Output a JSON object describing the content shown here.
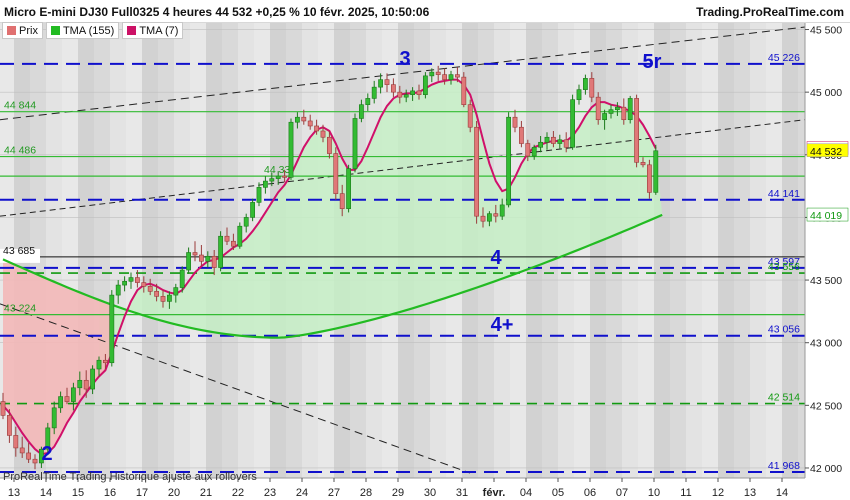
{
  "header": {
    "title": "Micro E-mini DJ30 Full0325 4 heures 44 532 +0,25 % 10 févr. 2025, 10:50:06",
    "brand": "Trading.ProRealTime.com"
  },
  "legend": [
    {
      "label": "Prix",
      "color": "#e07070"
    },
    {
      "label": "TMA (155)",
      "color": "#22bb22"
    },
    {
      "label": "TMA (7)",
      "color": "#cc1166"
    }
  ],
  "footer": "ProRealTime Trading Historique ajusté aux rollovers",
  "colors": {
    "up": "#33bb33",
    "down": "#e07878",
    "tma155": "#22bb22",
    "tma7": "#d0106a",
    "blue_dash": "#1010cc",
    "green_dash": "#119911",
    "green_solid": "#33bb33",
    "green_fill": "#c5efc5",
    "red_fill": "#f3b8b8",
    "price_bg": "#ffff00"
  },
  "chart_data": {
    "type": "candlestick",
    "title": "Micro E-mini DJ30 Full0325 4 heures",
    "ylim": [
      41920,
      45560
    ],
    "y_ticks": [
      42000,
      42500,
      43000,
      43500,
      44000,
      44500,
      45000,
      45500
    ],
    "y_tick_labels": [
      "42 000",
      "42 500",
      "43 000",
      "43 500",
      "44 000",
      "44 500",
      "45 000",
      "45 500"
    ],
    "x_tick_labels": [
      "13",
      "14",
      "15",
      "16",
      "17",
      "20",
      "21",
      "22",
      "23",
      "24",
      "27",
      "28",
      "29",
      "30",
      "31",
      "févr.",
      "04",
      "05",
      "06",
      "07",
      "10",
      "11",
      "12",
      "13",
      "14"
    ],
    "levels": [
      {
        "value": 45226,
        "label": "45 226",
        "style": "blue_dash"
      },
      {
        "value": 44844,
        "label": "44 844",
        "style": "green_solid"
      },
      {
        "value": 44486,
        "label": "44 486",
        "style": "green_solid"
      },
      {
        "value": 44330,
        "label": "44 33",
        "style": "green_solid"
      },
      {
        "value": 44141,
        "label": "44 141",
        "style": "blue_dash"
      },
      {
        "value": 43685,
        "label": "43 685",
        "style": "black_solid"
      },
      {
        "value": 43597,
        "label": "43 597",
        "style": "blue_dash"
      },
      {
        "value": 43556,
        "label": "43 556",
        "style": "green_dash"
      },
      {
        "value": 43224,
        "label": "43 224",
        "style": "green_solid"
      },
      {
        "value": 43056,
        "label": "43 056",
        "style": "blue_dash"
      },
      {
        "value": 42514,
        "label": "42 514",
        "style": "green_dash"
      },
      {
        "value": 41968,
        "label": "41 968",
        "style": "blue_dash"
      }
    ],
    "price_labels": [
      {
        "value": 44550,
        "label": "44 550"
      },
      {
        "value": 44532,
        "label": "44 532"
      },
      {
        "value": 44019,
        "label": "44 019"
      }
    ],
    "wave_labels": [
      "2",
      "3",
      "4",
      "4+",
      "5r"
    ],
    "ohlc": [
      [
        42530,
        42600,
        42390,
        42420
      ],
      [
        42420,
        42470,
        42200,
        42260
      ],
      [
        42260,
        42330,
        42090,
        42160
      ],
      [
        42160,
        42250,
        42080,
        42120
      ],
      [
        42120,
        42200,
        42040,
        42070
      ],
      [
        42070,
        42110,
        41990,
        42040
      ],
      [
        42040,
        42170,
        42000,
        42150
      ],
      [
        42150,
        42360,
        42120,
        42320
      ],
      [
        42320,
        42530,
        42270,
        42480
      ],
      [
        42480,
        42610,
        42440,
        42570
      ],
      [
        42570,
        42640,
        42510,
        42530
      ],
      [
        42530,
        42680,
        42460,
        42640
      ],
      [
        42640,
        42770,
        42580,
        42700
      ],
      [
        42700,
        42780,
        42560,
        42630
      ],
      [
        42630,
        42820,
        42590,
        42790
      ],
      [
        42790,
        42890,
        42730,
        42860
      ],
      [
        42860,
        42910,
        42790,
        42840
      ],
      [
        42840,
        43420,
        42810,
        43380
      ],
      [
        43380,
        43500,
        43310,
        43460
      ],
      [
        43460,
        43530,
        43410,
        43490
      ],
      [
        43490,
        43560,
        43430,
        43520
      ],
      [
        43520,
        43580,
        43440,
        43480
      ],
      [
        43480,
        43530,
        43400,
        43450
      ],
      [
        43450,
        43510,
        43380,
        43410
      ],
      [
        43410,
        43470,
        43330,
        43370
      ],
      [
        43370,
        43420,
        43280,
        43330
      ],
      [
        43330,
        43410,
        43270,
        43380
      ],
      [
        43380,
        43470,
        43320,
        43440
      ],
      [
        43440,
        43610,
        43400,
        43580
      ],
      [
        43580,
        43760,
        43550,
        43720
      ],
      [
        43720,
        43810,
        43650,
        43700
      ],
      [
        43700,
        43780,
        43610,
        43650
      ],
      [
        43650,
        43730,
        43600,
        43690
      ],
      [
        43690,
        43740,
        43540,
        43600
      ],
      [
        43600,
        43890,
        43570,
        43850
      ],
      [
        43850,
        43920,
        43780,
        43810
      ],
      [
        43810,
        43870,
        43740,
        43770
      ],
      [
        43770,
        43960,
        43750,
        43930
      ],
      [
        43930,
        44030,
        43880,
        44000
      ],
      [
        44000,
        44150,
        43970,
        44120
      ],
      [
        44120,
        44280,
        44090,
        44240
      ],
      [
        44240,
        44330,
        44190,
        44290
      ],
      [
        44290,
        44360,
        44250,
        44310
      ],
      [
        44310,
        44370,
        44260,
        44330
      ],
      [
        44330,
        44380,
        44280,
        44320
      ],
      [
        44320,
        44790,
        44300,
        44760
      ],
      [
        44760,
        44840,
        44710,
        44800
      ],
      [
        44800,
        44860,
        44740,
        44770
      ],
      [
        44770,
        44820,
        44700,
        44730
      ],
      [
        44730,
        44780,
        44660,
        44690
      ],
      [
        44690,
        44740,
        44600,
        44640
      ],
      [
        44640,
        44690,
        44470,
        44510
      ],
      [
        44510,
        44560,
        44140,
        44190
      ],
      [
        44190,
        44260,
        44010,
        44070
      ],
      [
        44070,
        44420,
        44040,
        44390
      ],
      [
        44390,
        44830,
        44360,
        44790
      ],
      [
        44790,
        44940,
        44760,
        44900
      ],
      [
        44900,
        44990,
        44850,
        44950
      ],
      [
        44950,
        45090,
        44910,
        45040
      ],
      [
        45040,
        45150,
        44990,
        45100
      ],
      [
        45100,
        45150,
        45000,
        45060
      ],
      [
        45060,
        45110,
        44960,
        45000
      ],
      [
        45000,
        45050,
        44910,
        44960
      ],
      [
        44960,
        45020,
        44920,
        44980
      ],
      [
        44980,
        45040,
        44930,
        45010
      ],
      [
        45010,
        45060,
        44940,
        44980
      ],
      [
        44980,
        45160,
        44950,
        45130
      ],
      [
        45130,
        45190,
        45080,
        45160
      ],
      [
        45160,
        45210,
        45090,
        45140
      ],
      [
        45140,
        45190,
        45060,
        45100
      ],
      [
        45100,
        45170,
        45060,
        45140
      ],
      [
        45140,
        45200,
        45080,
        45120
      ],
      [
        45120,
        45160,
        44880,
        44900
      ],
      [
        44900,
        44940,
        44680,
        44720
      ],
      [
        44720,
        44770,
        43950,
        44010
      ],
      [
        44010,
        44080,
        43920,
        43970
      ],
      [
        43970,
        44050,
        43930,
        44030
      ],
      [
        44030,
        44100,
        43960,
        44010
      ],
      [
        44010,
        44150,
        43980,
        44100
      ],
      [
        44100,
        44840,
        44080,
        44800
      ],
      [
        44800,
        44860,
        44680,
        44720
      ],
      [
        44720,
        44770,
        44560,
        44590
      ],
      [
        44590,
        44620,
        44450,
        44490
      ],
      [
        44490,
        44580,
        44460,
        44560
      ],
      [
        44560,
        44650,
        44520,
        44600
      ],
      [
        44600,
        44680,
        44540,
        44640
      ],
      [
        44640,
        44690,
        44560,
        44590
      ],
      [
        44590,
        44660,
        44550,
        44620
      ],
      [
        44620,
        44680,
        44520,
        44560
      ],
      [
        44560,
        44980,
        44540,
        44940
      ],
      [
        44940,
        45060,
        44900,
        45020
      ],
      [
        45020,
        45140,
        44980,
        45110
      ],
      [
        45110,
        45160,
        44920,
        44960
      ],
      [
        44960,
        45000,
        44740,
        44780
      ],
      [
        44780,
        44860,
        44700,
        44830
      ],
      [
        44830,
        44900,
        44790,
        44860
      ],
      [
        44860,
        44920,
        44810,
        44880
      ],
      [
        44880,
        44950,
        44740,
        44780
      ],
      [
        44780,
        44970,
        44750,
        44950
      ],
      [
        44950,
        44980,
        44400,
        44440
      ],
      [
        44440,
        44480,
        44400,
        44420
      ],
      [
        44420,
        44460,
        44150,
        44200
      ],
      [
        44200,
        44580,
        44180,
        44532
      ]
    ],
    "tma7": [
      42500,
      42440,
      42360,
      42280,
      42210,
      42150,
      42110,
      42120,
      42170,
      42260,
      42360,
      42440,
      42530,
      42600,
      42670,
      42730,
      42780,
      42920,
      43070,
      43210,
      43330,
      43420,
      43460,
      43470,
      43450,
      43420,
      43400,
      43390,
      43420,
      43490,
      43560,
      43610,
      43650,
      43660,
      43680,
      43720,
      43760,
      43790,
      43830,
      43890,
      43960,
      44040,
      44120,
      44200,
      44260,
      44340,
      44450,
      44560,
      44640,
      44700,
      44720,
      44690,
      44590,
      44470,
      44380,
      44380,
      44450,
      44560,
      44680,
      44800,
      44890,
      44950,
      44980,
      44990,
      44990,
      45000,
      45030,
      45060,
      45080,
      45090,
      45100,
      45100,
      45060,
      44980,
      44820,
      44620,
      44430,
      44290,
      44210,
      44230,
      44320,
      44430,
      44510,
      44560,
      44580,
      44600,
      44610,
      44610,
      44610,
      44650,
      44720,
      44810,
      44880,
      44920,
      44920,
      44900,
      44890,
      44870,
      44850,
      44810,
      44740,
      44650,
      44550
    ]
  }
}
